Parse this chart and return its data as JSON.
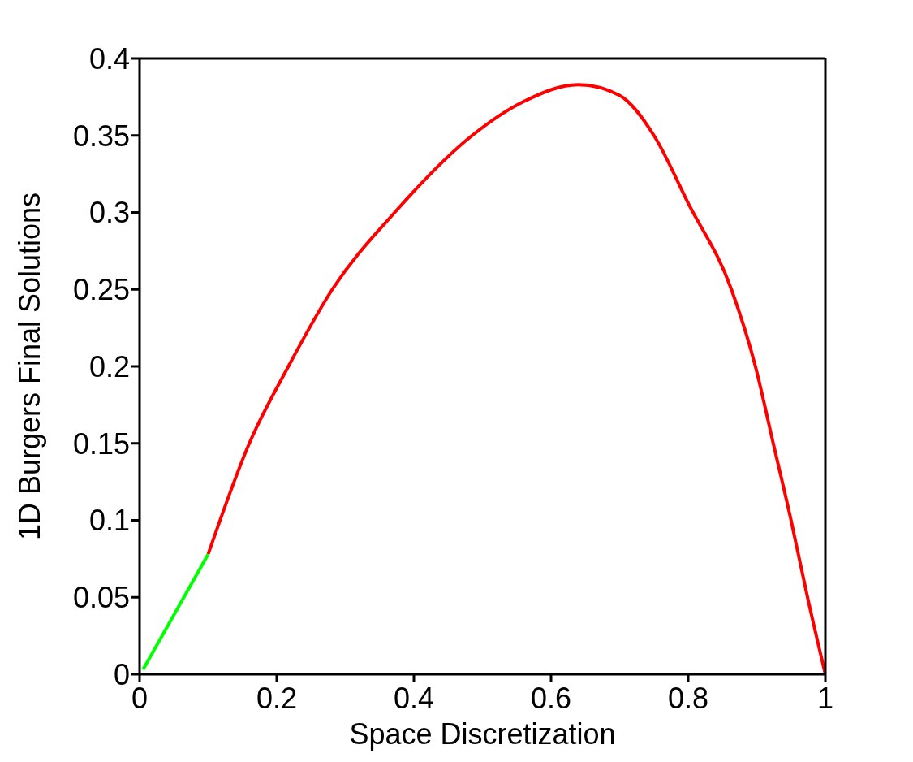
{
  "chart_data": {
    "type": "line",
    "xlabel": "Space Discretization",
    "ylabel": "1D Burgers Final Solutions",
    "xlim": [
      0,
      1
    ],
    "ylim": [
      0,
      0.4
    ],
    "xticks": [
      0,
      0.2,
      0.4,
      0.6,
      0.8,
      1
    ],
    "yticks": [
      0,
      0.05,
      0.1,
      0.15,
      0.2,
      0.25,
      0.3,
      0.35,
      0.4
    ],
    "legend": false,
    "marker": "none",
    "line_style": "solid",
    "series": [
      {
        "color": "#ff0000",
        "x": [
          0.1,
          0.16,
          0.217,
          0.281,
          0.372,
          0.485,
          0.56,
          0.64,
          0.7,
          0.75,
          0.8,
          0.863,
          0.898,
          0.924,
          0.95,
          0.974,
          1
        ],
        "values": [
          0.078,
          0.15,
          0.2,
          0.25,
          0.3,
          0.35,
          0.372,
          0.383,
          0.376,
          0.35,
          0.306,
          0.25,
          0.2,
          0.15,
          0.1,
          0.05,
          0
        ]
      },
      {
        "color": "#00ff00",
        "x": [
          0.005,
          0.1
        ],
        "values": [
          0.003,
          0.078
        ]
      }
    ]
  }
}
